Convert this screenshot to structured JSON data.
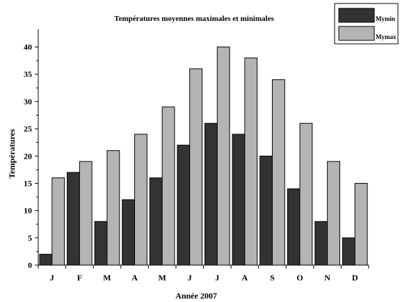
{
  "colors": {
    "mymin": "#333333",
    "mymax": "#b4b4b4",
    "axis": "#000000",
    "background": "#ffffff"
  },
  "chart_data": {
    "type": "bar",
    "title": "Températures moyennes maximales et minimales",
    "xlabel": "Année 2007",
    "ylabel": "Températures",
    "categories": [
      "J",
      "F",
      "M",
      "A",
      "M",
      "J",
      "J",
      "A",
      "S",
      "O",
      "N",
      "D"
    ],
    "series": [
      {
        "name": "Mymin",
        "values": [
          2,
          17,
          8,
          12,
          16,
          22,
          26,
          24,
          20,
          14,
          8,
          5
        ]
      },
      {
        "name": "Mymax",
        "values": [
          16,
          19,
          21,
          24,
          29,
          36,
          40,
          38,
          34,
          26,
          19,
          15
        ]
      }
    ],
    "ylim": [
      0,
      43
    ],
    "yticks": [
      0,
      5,
      10,
      15,
      20,
      25,
      30,
      35,
      40
    ],
    "grid": false,
    "legend_position": "top-right"
  }
}
